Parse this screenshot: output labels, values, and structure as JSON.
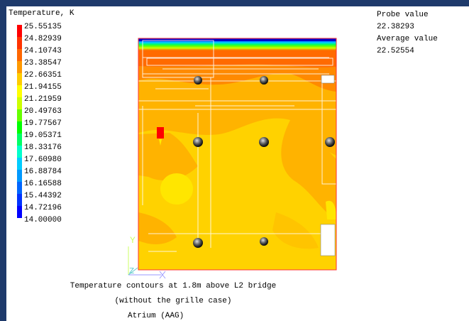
{
  "legend": {
    "title": "Temperature, K",
    "values": [
      "25.55135",
      "24.82939",
      "24.10743",
      "23.38547",
      "22.66351",
      "21.94155",
      "21.21959",
      "20.49763",
      "19.77567",
      "19.05371",
      "18.33176",
      "17.60980",
      "16.88784",
      "16.16588",
      "15.44392",
      "14.72196",
      "14.00000"
    ],
    "colors": [
      "#ff0000",
      "#ff3300",
      "#ff6600",
      "#ff9900",
      "#ffcc00",
      "#ffff00",
      "#ccff00",
      "#66ff00",
      "#00ff00",
      "#00ff66",
      "#00ffcc",
      "#00ccff",
      "#0099ff",
      "#0066ff",
      "#0033ff",
      "#0000ff"
    ]
  },
  "probe": {
    "probe_label": "Probe value",
    "probe_value": "22.38293",
    "average_label": "Average value",
    "average_value": "22.52554"
  },
  "caption": {
    "line1": "Temperature contours at 1.8m above L2 bridge",
    "line2": "(without the grille case)",
    "line3": "Atrium (AAG)"
  },
  "axes": {
    "y_label": "Y",
    "z_label": "Z"
  },
  "colors": {
    "background_frame": "#1e3a6b",
    "viewport": "#ffffff",
    "contour_main": "#ffd200",
    "contour_warm": "#ffb300",
    "contour_hot": "#ff6a00",
    "probe_marker": "#ff0000"
  },
  "icons": [
    "sphere-sensor-icon",
    "axis-triad-icon"
  ]
}
